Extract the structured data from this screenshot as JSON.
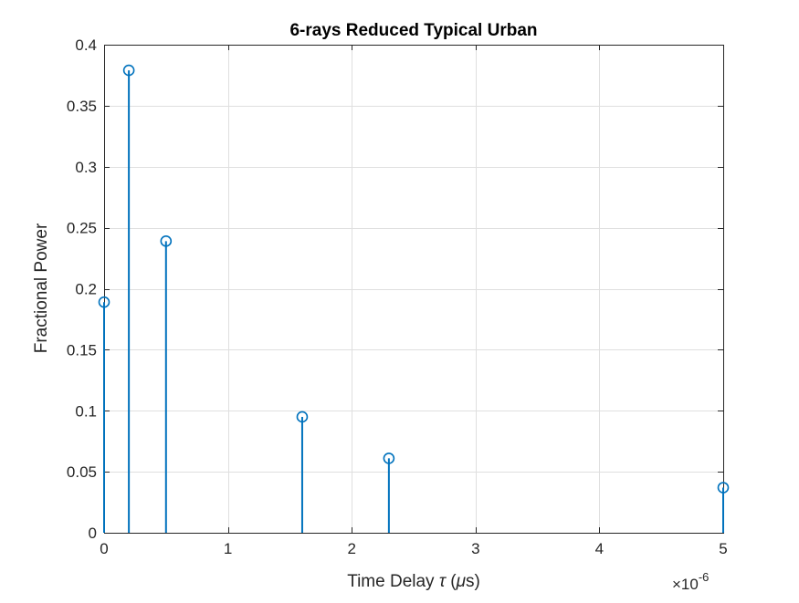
{
  "chart_data": {
    "type": "stem",
    "title": "6-rays Reduced Typical Urban",
    "xlabel_main": "Time Delay ",
    "xlabel_symbol": "τ",
    "xlabel_unit_open": " (",
    "xlabel_unit_mu": "μ",
    "xlabel_unit_close": "s)",
    "ylabel": "Fractional Power",
    "x_exponent_times": "×10",
    "x_exponent_power": "-6",
    "xlim": [
      0,
      5
    ],
    "ylim": [
      0,
      0.4
    ],
    "x_ticks": [
      0,
      1,
      2,
      3,
      4,
      5
    ],
    "x_tick_labels": [
      "0",
      "1",
      "2",
      "3",
      "4",
      "5"
    ],
    "y_ticks": [
      0,
      0.05,
      0.1,
      0.15,
      0.2,
      0.25,
      0.3,
      0.35,
      0.4
    ],
    "y_tick_labels": [
      "0",
      "0.05",
      "0.1",
      "0.15",
      "0.2",
      "0.25",
      "0.3",
      "0.35",
      "0.4"
    ],
    "grid": true,
    "x": [
      0,
      0.2,
      0.5,
      1.6,
      2.3,
      5.0
    ],
    "y": [
      0.189,
      0.379,
      0.239,
      0.095,
      0.061,
      0.037
    ],
    "color": "#0072BD"
  }
}
